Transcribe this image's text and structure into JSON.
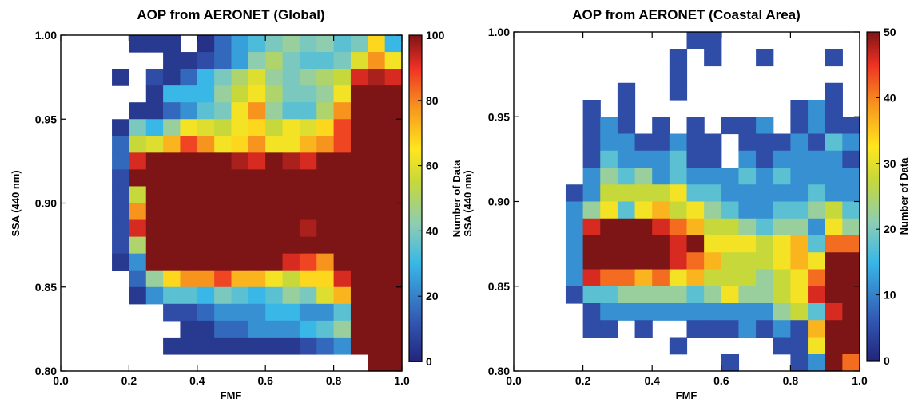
{
  "chart_data": [
    {
      "type": "heatmap",
      "title": "AOP from AERONET (Global)",
      "xlabel": "FMF",
      "ylabel": "SSA (440 nm)",
      "colorbar_label": "Number of Data",
      "xlim": [
        0.0,
        1.0
      ],
      "ylim": [
        0.8,
        1.0
      ],
      "x_ticks": [
        "0.0",
        "0.2",
        "0.4",
        "0.6",
        "0.8",
        "1.0"
      ],
      "y_ticks": [
        "0.80",
        "0.85",
        "0.90",
        "0.95",
        "1.00"
      ],
      "colorbar_ticks": [
        "0",
        "20",
        "40",
        "60",
        "80",
        "100"
      ],
      "colorbar_range": [
        0,
        100
      ],
      "colormap": [
        "#22257a",
        "#3256b2",
        "#39b7e6",
        "#8ccdb4",
        "#c6d83a",
        "#ffe61e",
        "#f7941e",
        "#ee3124",
        "#7d1416"
      ],
      "grid": false,
      "bin_x": [
        0.0,
        0.05,
        0.1,
        0.15,
        0.2,
        0.25,
        0.3,
        0.35,
        0.4,
        0.45,
        0.5,
        0.55,
        0.6,
        0.65,
        0.7,
        0.75,
        0.8,
        0.85,
        0.9,
        0.95
      ],
      "bin_width_x": 0.05,
      "bin_y": [
        0.8,
        0.81,
        0.82,
        0.83,
        0.84,
        0.85,
        0.86,
        0.87,
        0.88,
        0.89,
        0.9,
        0.91,
        0.92,
        0.93,
        0.94,
        0.95,
        0.96,
        0.97,
        0.98,
        0.99
      ],
      "bin_width_y": 0.01,
      "counts": [
        [
          null,
          null,
          null,
          null,
          5,
          5,
          5,
          null,
          3,
          15,
          22,
          28,
          35,
          40,
          35,
          38,
          30,
          35,
          65,
          25
        ],
        [
          null,
          null,
          null,
          null,
          null,
          null,
          5,
          5,
          10,
          15,
          22,
          38,
          45,
          35,
          30,
          30,
          35,
          55,
          75,
          60
        ],
        [
          null,
          null,
          null,
          5,
          null,
          10,
          5,
          15,
          25,
          35,
          45,
          55,
          40,
          35,
          40,
          45,
          50,
          90,
          95,
          90
        ],
        [
          null,
          null,
          null,
          null,
          null,
          5,
          25,
          25,
          25,
          40,
          50,
          60,
          45,
          35,
          35,
          40,
          60,
          100,
          100,
          100
        ],
        [
          null,
          null,
          null,
          null,
          5,
          5,
          15,
          20,
          30,
          35,
          60,
          75,
          40,
          30,
          30,
          45,
          75,
          100,
          100,
          100
        ],
        [
          null,
          null,
          null,
          5,
          35,
          25,
          40,
          60,
          55,
          50,
          60,
          65,
          50,
          60,
          55,
          65,
          85,
          100,
          100,
          100
        ],
        [
          null,
          null,
          null,
          15,
          50,
          55,
          70,
          85,
          75,
          60,
          65,
          75,
          60,
          60,
          70,
          75,
          85,
          100,
          100,
          100
        ],
        [
          null,
          null,
          null,
          15,
          90,
          100,
          100,
          100,
          100,
          100,
          95,
          90,
          100,
          95,
          90,
          100,
          100,
          100,
          100,
          100
        ],
        [
          null,
          null,
          null,
          10,
          100,
          100,
          100,
          100,
          100,
          100,
          100,
          100,
          100,
          100,
          100,
          100,
          100,
          100,
          100,
          100
        ],
        [
          null,
          null,
          null,
          10,
          50,
          100,
          100,
          100,
          100,
          100,
          100,
          100,
          100,
          100,
          100,
          100,
          100,
          100,
          100,
          100
        ],
        [
          null,
          null,
          null,
          10,
          75,
          100,
          100,
          100,
          100,
          100,
          100,
          100,
          100,
          100,
          100,
          100,
          100,
          100,
          100,
          100
        ],
        [
          null,
          null,
          null,
          10,
          90,
          100,
          100,
          100,
          100,
          100,
          100,
          100,
          100,
          100,
          95,
          100,
          100,
          100,
          100,
          100
        ],
        [
          null,
          null,
          null,
          10,
          45,
          100,
          100,
          100,
          100,
          100,
          100,
          100,
          100,
          100,
          100,
          100,
          100,
          100,
          100,
          100
        ],
        [
          null,
          null,
          null,
          5,
          20,
          100,
          100,
          100,
          100,
          100,
          100,
          100,
          100,
          90,
          85,
          75,
          100,
          100,
          100,
          100
        ],
        [
          null,
          null,
          null,
          null,
          15,
          40,
          65,
          75,
          75,
          85,
          70,
          70,
          60,
          50,
          65,
          65,
          90,
          100,
          100,
          100
        ],
        [
          null,
          null,
          null,
          null,
          5,
          20,
          30,
          30,
          25,
          35,
          30,
          25,
          30,
          40,
          35,
          55,
          70,
          100,
          100,
          100
        ],
        [
          null,
          null,
          null,
          null,
          null,
          null,
          10,
          10,
          15,
          20,
          20,
          20,
          25,
          25,
          20,
          20,
          30,
          100,
          100,
          100
        ],
        [
          null,
          null,
          null,
          null,
          null,
          null,
          null,
          5,
          5,
          15,
          15,
          20,
          20,
          20,
          25,
          30,
          40,
          100,
          100,
          100
        ],
        [
          null,
          null,
          null,
          null,
          null,
          null,
          5,
          5,
          5,
          5,
          5,
          5,
          5,
          5,
          10,
          15,
          20,
          100,
          100,
          100
        ],
        [
          null,
          null,
          null,
          null,
          null,
          null,
          null,
          null,
          null,
          null,
          null,
          null,
          null,
          null,
          null,
          null,
          null,
          null,
          100,
          100
        ]
      ]
    },
    {
      "type": "heatmap",
      "title": "AOP from AERONET (Coastal Area)",
      "xlabel": "FMF",
      "ylabel": "SSA (440 nm)",
      "colorbar_label": "Number of Data",
      "xlim": [
        0.0,
        1.0
      ],
      "ylim": [
        0.8,
        1.0
      ],
      "x_ticks": [
        "0.0",
        "0.2",
        "0.4",
        "0.6",
        "0.8",
        "1.0"
      ],
      "y_ticks": [
        "0.80",
        "0.85",
        "0.90",
        "0.95",
        "1.00"
      ],
      "colorbar_ticks": [
        "0",
        "10",
        "20",
        "30",
        "40",
        "50"
      ],
      "colorbar_range": [
        0,
        50
      ],
      "colormap": [
        "#22257a",
        "#3256b2",
        "#39b7e6",
        "#8ccdb4",
        "#c6d83a",
        "#ffe61e",
        "#f7941e",
        "#ee3124",
        "#7d1416"
      ],
      "grid": false,
      "bin_x": [
        0.0,
        0.05,
        0.1,
        0.15,
        0.2,
        0.25,
        0.3,
        0.35,
        0.4,
        0.45,
        0.5,
        0.55,
        0.6,
        0.65,
        0.7,
        0.75,
        0.8,
        0.85,
        0.9,
        0.95
      ],
      "bin_width_x": 0.05,
      "bin_y": [
        0.8,
        0.81,
        0.82,
        0.83,
        0.84,
        0.85,
        0.86,
        0.87,
        0.88,
        0.89,
        0.9,
        0.91,
        0.92,
        0.93,
        0.94,
        0.95,
        0.96,
        0.97,
        0.98,
        0.99
      ],
      "bin_width_y": 0.01,
      "counts": [
        [
          null,
          null,
          null,
          null,
          null,
          null,
          null,
          null,
          null,
          null,
          5,
          5,
          null,
          null,
          null,
          null,
          null,
          null,
          null,
          null
        ],
        [
          null,
          null,
          null,
          null,
          null,
          null,
          null,
          null,
          null,
          5,
          null,
          5,
          null,
          null,
          5,
          null,
          null,
          null,
          5,
          null
        ],
        [
          null,
          null,
          null,
          null,
          null,
          null,
          null,
          null,
          null,
          5,
          null,
          null,
          null,
          null,
          null,
          null,
          null,
          null,
          null,
          null
        ],
        [
          null,
          null,
          null,
          null,
          null,
          null,
          5,
          null,
          null,
          5,
          null,
          null,
          null,
          null,
          null,
          null,
          null,
          null,
          5,
          null
        ],
        [
          null,
          null,
          null,
          null,
          5,
          null,
          5,
          null,
          null,
          null,
          null,
          null,
          null,
          null,
          null,
          null,
          5,
          10,
          5,
          null
        ],
        [
          null,
          null,
          null,
          null,
          5,
          10,
          5,
          null,
          5,
          null,
          5,
          null,
          5,
          5,
          10,
          null,
          5,
          10,
          5,
          5
        ],
        [
          null,
          null,
          null,
          null,
          5,
          10,
          10,
          5,
          5,
          10,
          5,
          5,
          null,
          5,
          5,
          5,
          10,
          5,
          15,
          10
        ],
        [
          null,
          null,
          null,
          null,
          5,
          15,
          10,
          10,
          10,
          15,
          5,
          5,
          null,
          10,
          5,
          10,
          10,
          10,
          10,
          5
        ],
        [
          null,
          null,
          null,
          null,
          10,
          20,
          15,
          20,
          10,
          15,
          10,
          10,
          10,
          15,
          10,
          15,
          10,
          10,
          10,
          10
        ],
        [
          null,
          null,
          null,
          5,
          10,
          25,
          25,
          25,
          25,
          30,
          15,
          15,
          10,
          10,
          10,
          10,
          10,
          15,
          10,
          10
        ],
        [
          null,
          null,
          null,
          10,
          20,
          30,
          15,
          30,
          35,
          25,
          30,
          20,
          15,
          10,
          10,
          15,
          15,
          20,
          25,
          15
        ],
        [
          null,
          null,
          null,
          10,
          45,
          50,
          50,
          50,
          45,
          40,
          35,
          25,
          25,
          20,
          15,
          20,
          20,
          10,
          30,
          20
        ],
        [
          null,
          null,
          null,
          10,
          50,
          50,
          50,
          50,
          50,
          45,
          50,
          30,
          30,
          30,
          25,
          30,
          35,
          15,
          40,
          40
        ],
        [
          null,
          null,
          null,
          10,
          50,
          50,
          50,
          50,
          50,
          45,
          40,
          35,
          25,
          25,
          25,
          30,
          35,
          30,
          50,
          50
        ],
        [
          null,
          null,
          null,
          10,
          45,
          40,
          40,
          35,
          40,
          30,
          35,
          25,
          25,
          25,
          20,
          25,
          30,
          40,
          50,
          50
        ],
        [
          null,
          null,
          null,
          5,
          15,
          15,
          20,
          20,
          20,
          20,
          15,
          20,
          30,
          20,
          20,
          25,
          30,
          45,
          50,
          50
        ],
        [
          null,
          null,
          null,
          null,
          5,
          10,
          10,
          10,
          10,
          10,
          10,
          10,
          10,
          10,
          10,
          20,
          25,
          15,
          45,
          50
        ],
        [
          null,
          null,
          null,
          null,
          5,
          5,
          null,
          5,
          null,
          null,
          5,
          5,
          5,
          10,
          5,
          10,
          5,
          35,
          50,
          50
        ],
        [
          null,
          null,
          null,
          null,
          null,
          null,
          null,
          null,
          null,
          5,
          null,
          null,
          null,
          null,
          null,
          5,
          5,
          30,
          50,
          50
        ],
        [
          null,
          null,
          null,
          null,
          null,
          null,
          null,
          null,
          null,
          null,
          null,
          null,
          5,
          null,
          null,
          null,
          5,
          10,
          50,
          40
        ]
      ]
    }
  ]
}
